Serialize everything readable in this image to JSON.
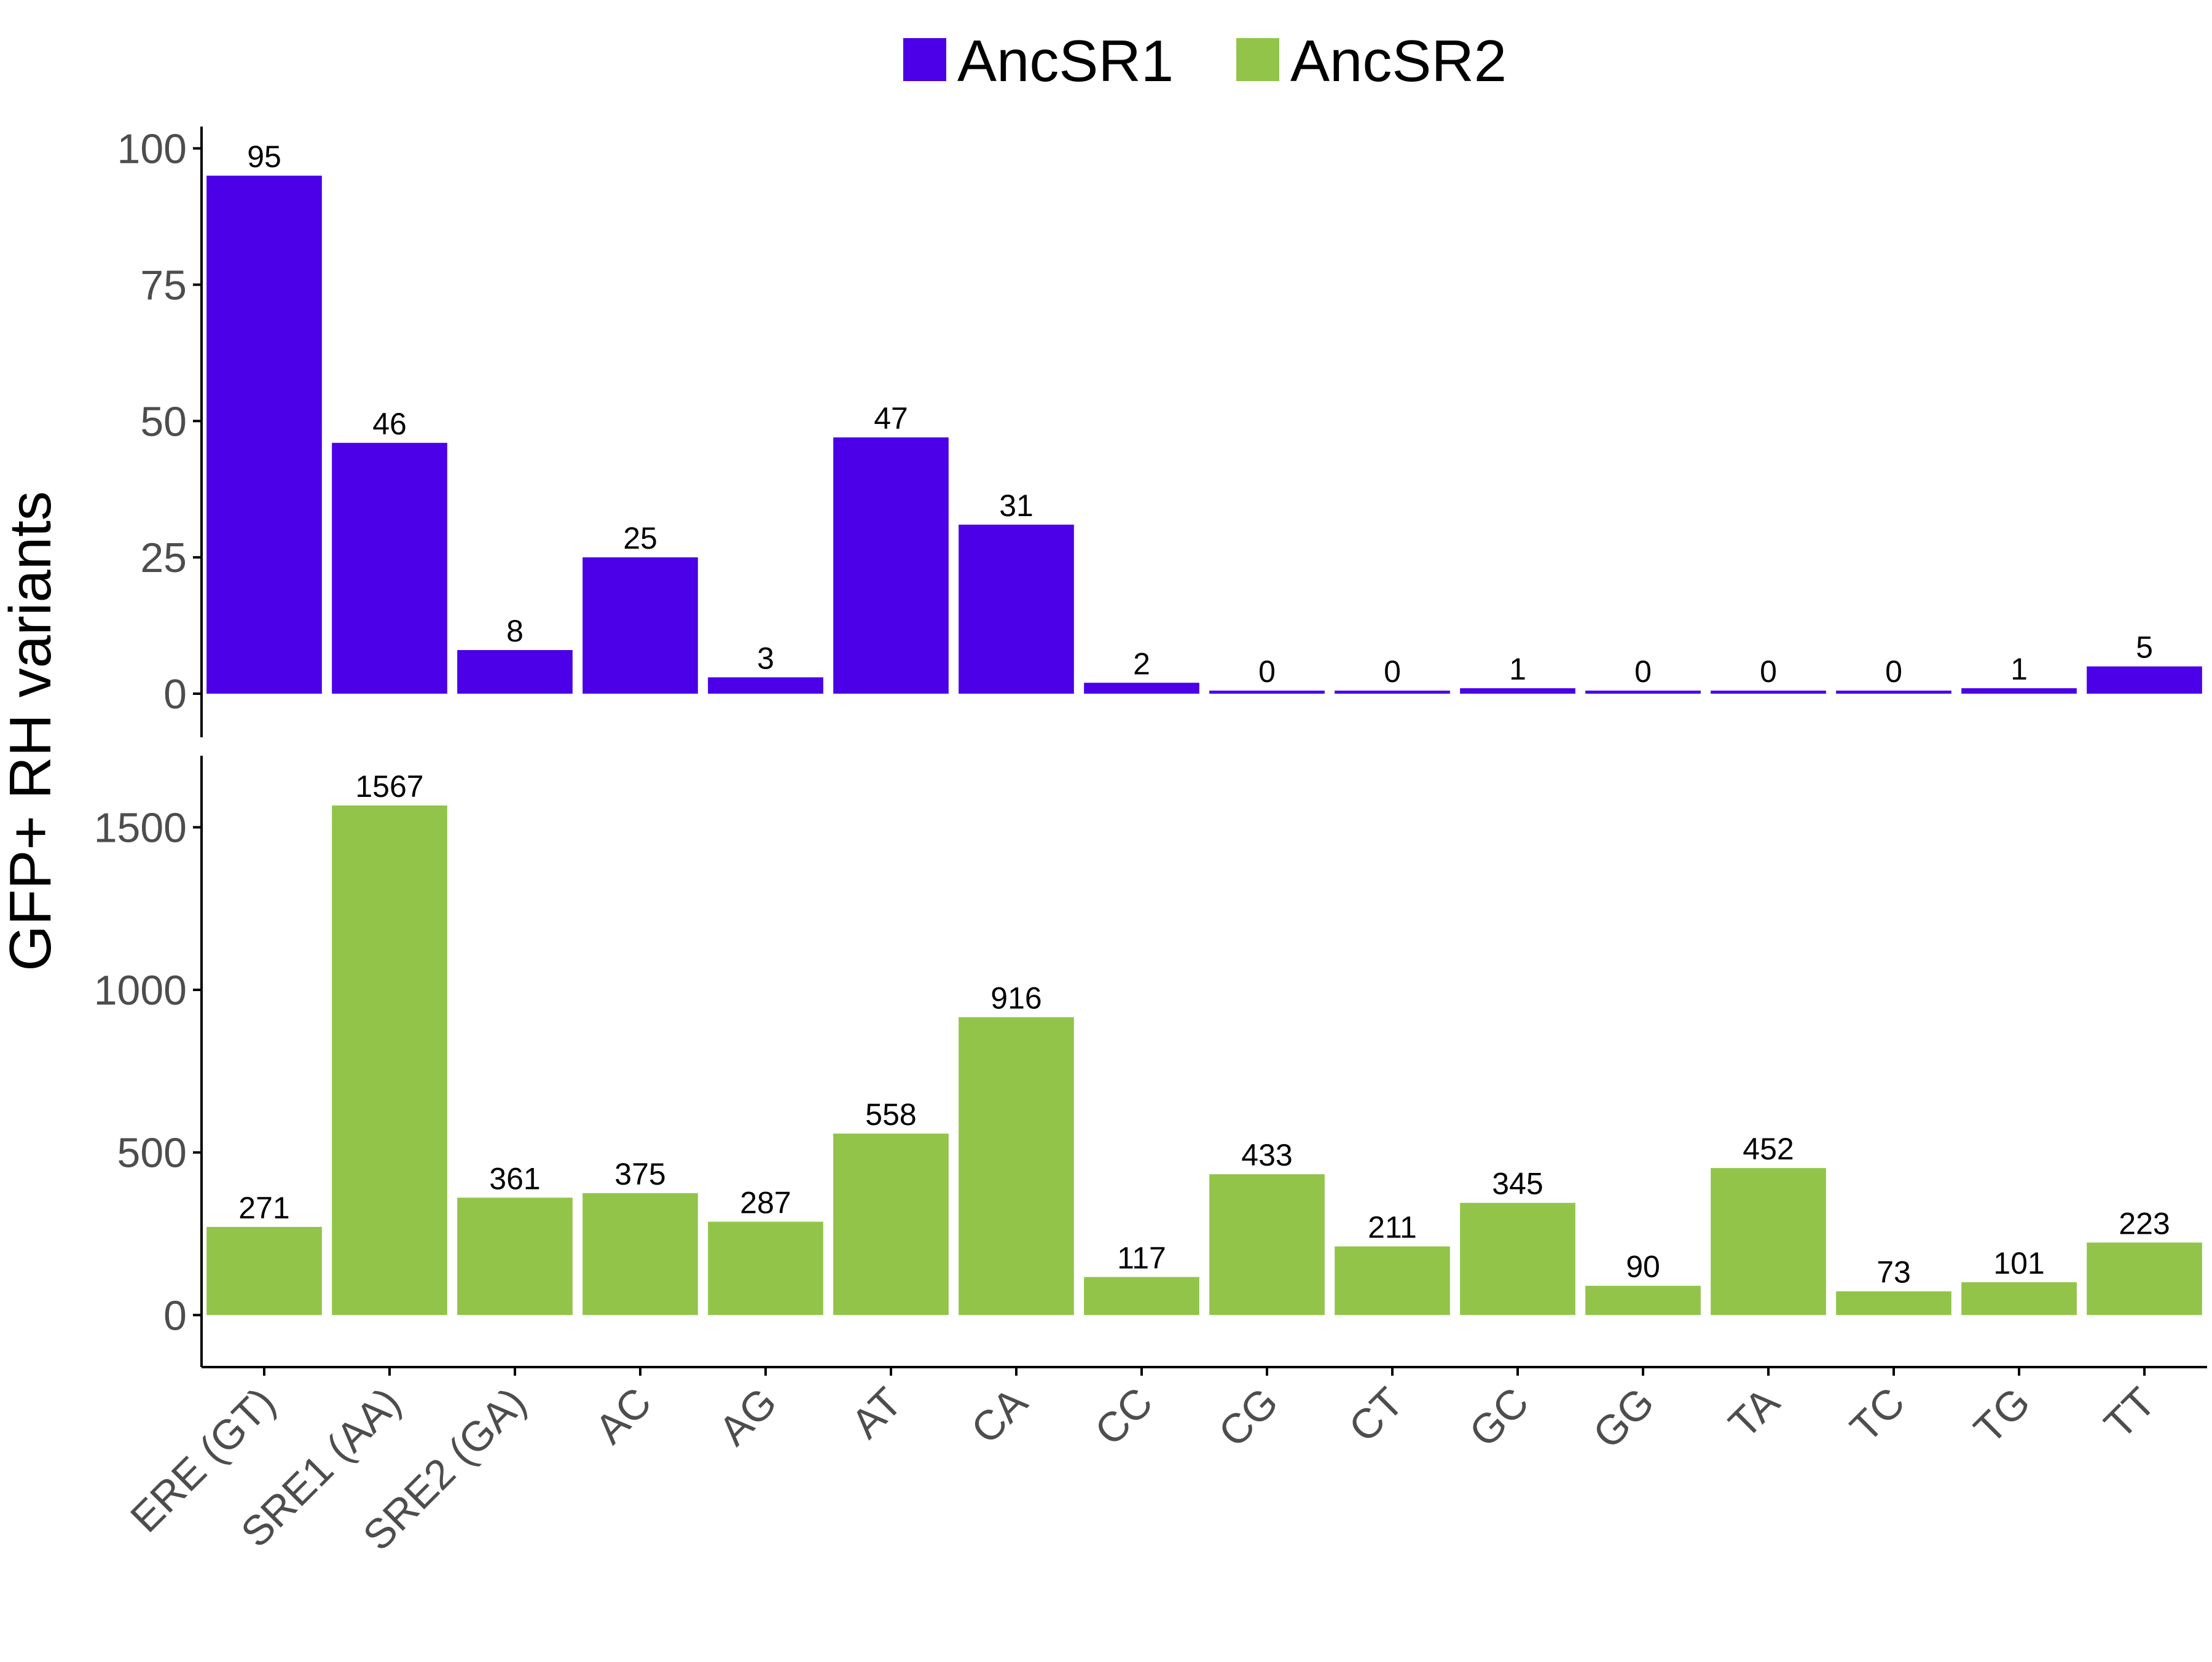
{
  "chart_data": {
    "type": "bar",
    "layout": "faceted-vertical",
    "ylabel": "GFP+ RH variants",
    "xlabel": "",
    "grid": false,
    "legend_position": "top",
    "categories": [
      "ERE (GT)",
      "SRE1 (AA)",
      "SRE2 (GA)",
      "AC",
      "AG",
      "AT",
      "CA",
      "CC",
      "CG",
      "CT",
      "GC",
      "GG",
      "TA",
      "TC",
      "TG",
      "TT"
    ],
    "series": [
      {
        "name": "AncSR1",
        "color": "#4B00E8",
        "values": [
          95,
          46,
          8,
          25,
          3,
          47,
          31,
          2,
          0,
          0,
          1,
          0,
          0,
          0,
          1,
          5
        ],
        "ylim": [
          -8,
          104
        ],
        "yticks": [
          0,
          25,
          50,
          75,
          100
        ]
      },
      {
        "name": "AncSR2",
        "color": "#92C449",
        "values": [
          271,
          1567,
          361,
          375,
          287,
          558,
          916,
          117,
          433,
          211,
          345,
          90,
          452,
          73,
          101,
          223
        ],
        "ylim": [
          -160,
          1720
        ],
        "yticks": [
          0,
          500,
          1000,
          1500
        ]
      }
    ]
  }
}
